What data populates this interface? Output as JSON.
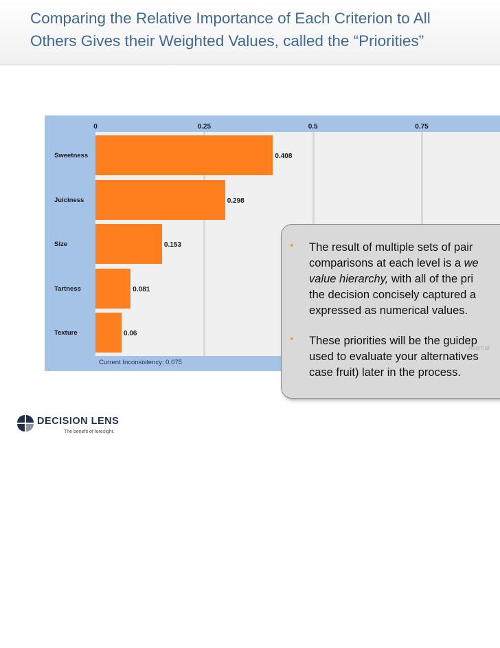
{
  "title": {
    "line1": "Comparing the Relative Importance of Each Criterion to All",
    "line2": "Others Gives their Weighted Values, called the “Priorities”"
  },
  "chart_data": {
    "type": "bar",
    "orientation": "horizontal",
    "categories": [
      "Sweetness",
      "Juiciness",
      "Size",
      "Tartness",
      "Texture"
    ],
    "values": [
      0.408,
      0.298,
      0.153,
      0.081,
      0.06
    ],
    "value_labels": [
      "0.408",
      "0.298",
      "0.153",
      "0.081",
      "0.06"
    ],
    "axis_ticks": [
      0,
      0.25,
      0.5,
      0.75
    ],
    "axis_tick_labels": [
      "0",
      "0.25",
      "0.5",
      "0.75"
    ],
    "xlim": [
      0,
      0.93
    ],
    "grid": true,
    "bar_color": "#ff7f1e",
    "footer": "Current Inconsistency: 0.075"
  },
  "callout": {
    "bullets": [
      {
        "lines": [
          "The result of multiple sets of pair",
          "comparisons at each level is a ",
          "value hierarchy,",
          " with all of the pri",
          "the decision concisely captured a",
          "expressed as numerical values."
        ]
      },
      {
        "lines": [
          "These priorities will be the guidep",
          "used to evaluate your alternatives",
          "case fruit) later in the process."
        ]
      }
    ],
    "emphasis_1": "we",
    "ghost_text": "Alternat",
    "bullet_color": "#f0a030"
  },
  "logo": {
    "name": "DECISION LENS",
    "tagline": "The benefit of foresight."
  }
}
